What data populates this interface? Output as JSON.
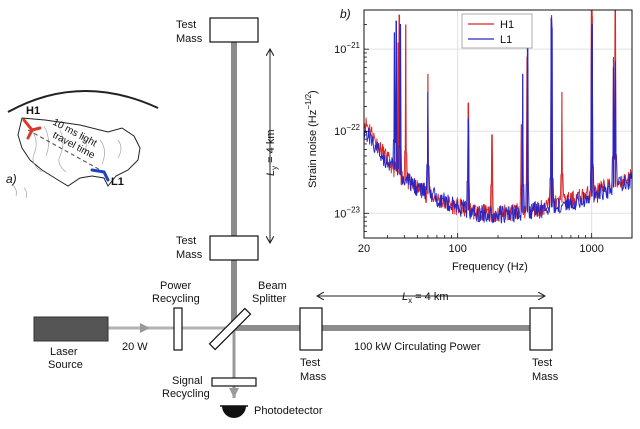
{
  "map": {
    "panel_label": "a)",
    "site_h1": "H1",
    "site_l1": "L1",
    "travel_line1": "10 ms light",
    "travel_line2": "travel time",
    "colors": {
      "h1": "#d93a2b",
      "l1": "#2140c8",
      "land": "#ffffff",
      "outline": "#222222",
      "relief": "#9a9a9a"
    }
  },
  "interferometer": {
    "test_mass_top": {
      "line1": "Test",
      "line2": "Mass"
    },
    "test_mass_mid": {
      "line1": "Test",
      "line2": "Mass"
    },
    "test_mass_left": {
      "line1": "Test",
      "line2": "Mass"
    },
    "test_mass_right": {
      "line1": "Test",
      "line2": "Mass"
    },
    "ly_label": "L",
    "ly_sub": "y",
    "ly_value": " = 4 km",
    "lx_label": "L",
    "lx_sub": "x",
    "lx_value": " = 4 km",
    "power_recycling": {
      "line1": "Power",
      "line2": "Recycling"
    },
    "beam_splitter": {
      "line1": "Beam",
      "line2": "Splitter"
    },
    "laser_source": {
      "line1": "Laser",
      "line2": "Source"
    },
    "laser_power": "20 W",
    "circulating_power": "100 kW Circulating Power",
    "signal_recycling": {
      "line1": "Signal",
      "line2": "Recycling"
    },
    "photodetector": "Photodetector",
    "colors": {
      "arm": "#8c8c8c",
      "input_beam": "#b3b3b3",
      "laser_box": "#555555"
    }
  },
  "chart_data": {
    "type": "line",
    "panel_label": "b)",
    "xlabel": "Frequency (Hz)",
    "ylabel": "Strain noise (Hz",
    "ylabel_exp": "−1/2",
    "ylabel_close": ")",
    "xscale": "log",
    "yscale": "log",
    "xlim": [
      20,
      2000
    ],
    "ylim": [
      5e-24,
      3e-21
    ],
    "xticks": [
      20,
      100,
      1000
    ],
    "xtick_labels": [
      "20",
      "100",
      "1000"
    ],
    "yticks": [
      1e-23,
      1e-22,
      1e-21
    ],
    "ytick_labels": [
      {
        "base": "10",
        "exp": "−23"
      },
      {
        "base": "10",
        "exp": "−22"
      },
      {
        "base": "10",
        "exp": "−21"
      }
    ],
    "grid": true,
    "legend_position": "top-center",
    "series": [
      {
        "name": "H1",
        "color": "#d62728",
        "floor": [
          [
            20,
            1.3e-22
          ],
          [
            22,
            1.1e-22
          ],
          [
            25,
            7e-23
          ],
          [
            30,
            4.5e-23
          ],
          [
            35,
            3.2e-23
          ],
          [
            40,
            2.6e-23
          ],
          [
            50,
            2e-23
          ],
          [
            60,
            1.7e-23
          ],
          [
            70,
            1.5e-23
          ],
          [
            80,
            1.35e-23
          ],
          [
            100,
            1.2e-23
          ],
          [
            120,
            1.1e-23
          ],
          [
            150,
            1.02e-23
          ],
          [
            200,
            1e-23
          ],
          [
            300,
            1.05e-23
          ],
          [
            400,
            1.15e-23
          ],
          [
            500,
            1.25e-23
          ],
          [
            700,
            1.45e-23
          ],
          [
            1000,
            1.75e-23
          ],
          [
            1500,
            2.3e-23
          ],
          [
            2000,
            2.8e-23
          ]
        ],
        "lines": [
          [
            35.9,
            1.2e-21
          ],
          [
            36.7,
            2.6e-21
          ],
          [
            41,
            2e-21
          ],
          [
            60,
            5e-22
          ],
          [
            120,
            2.2e-22
          ],
          [
            180,
            9e-23
          ],
          [
            300,
            1.2e-22
          ],
          [
            331,
            8e-22
          ],
          [
            500,
            1.6e-21
          ],
          [
            502,
            2.6e-21
          ],
          [
            600,
            3e-22
          ],
          [
            1000,
            5e-21
          ],
          [
            1010,
            2.5e-21
          ],
          [
            1455,
            8e-22
          ],
          [
            1500,
            5e-21
          ]
        ]
      },
      {
        "name": "L1",
        "color": "#2626c8",
        "floor": [
          [
            20,
            1e-22
          ],
          [
            22,
            8.5e-23
          ],
          [
            25,
            6e-23
          ],
          [
            30,
            4.2e-23
          ],
          [
            35,
            3.2e-23
          ],
          [
            40,
            2.6e-23
          ],
          [
            50,
            2.05e-23
          ],
          [
            60,
            1.75e-23
          ],
          [
            70,
            1.55e-23
          ],
          [
            80,
            1.4e-23
          ],
          [
            100,
            1.2e-23
          ],
          [
            120,
            1.08e-23
          ],
          [
            150,
            9.8e-24
          ],
          [
            200,
            9.5e-24
          ],
          [
            300,
            1e-23
          ],
          [
            400,
            1.08e-23
          ],
          [
            500,
            1.18e-23
          ],
          [
            700,
            1.35e-23
          ],
          [
            1000,
            1.6e-23
          ],
          [
            1500,
            2.1e-23
          ],
          [
            2000,
            2.5e-23
          ]
        ],
        "lines": [
          [
            33.7,
            1.6e-21
          ],
          [
            34.7,
            2.2e-21
          ],
          [
            37.3,
            2e-21
          ],
          [
            60,
            3e-22
          ],
          [
            120,
            1.4e-22
          ],
          [
            306,
            5e-22
          ],
          [
            332,
            1.2e-21
          ],
          [
            500,
            2.4e-21
          ],
          [
            507,
            1.8e-21
          ],
          [
            1000,
            9e-22
          ],
          [
            1008,
            2e-21
          ],
          [
            1455,
            6e-22
          ],
          [
            1500,
            7e-22
          ]
        ]
      }
    ]
  }
}
